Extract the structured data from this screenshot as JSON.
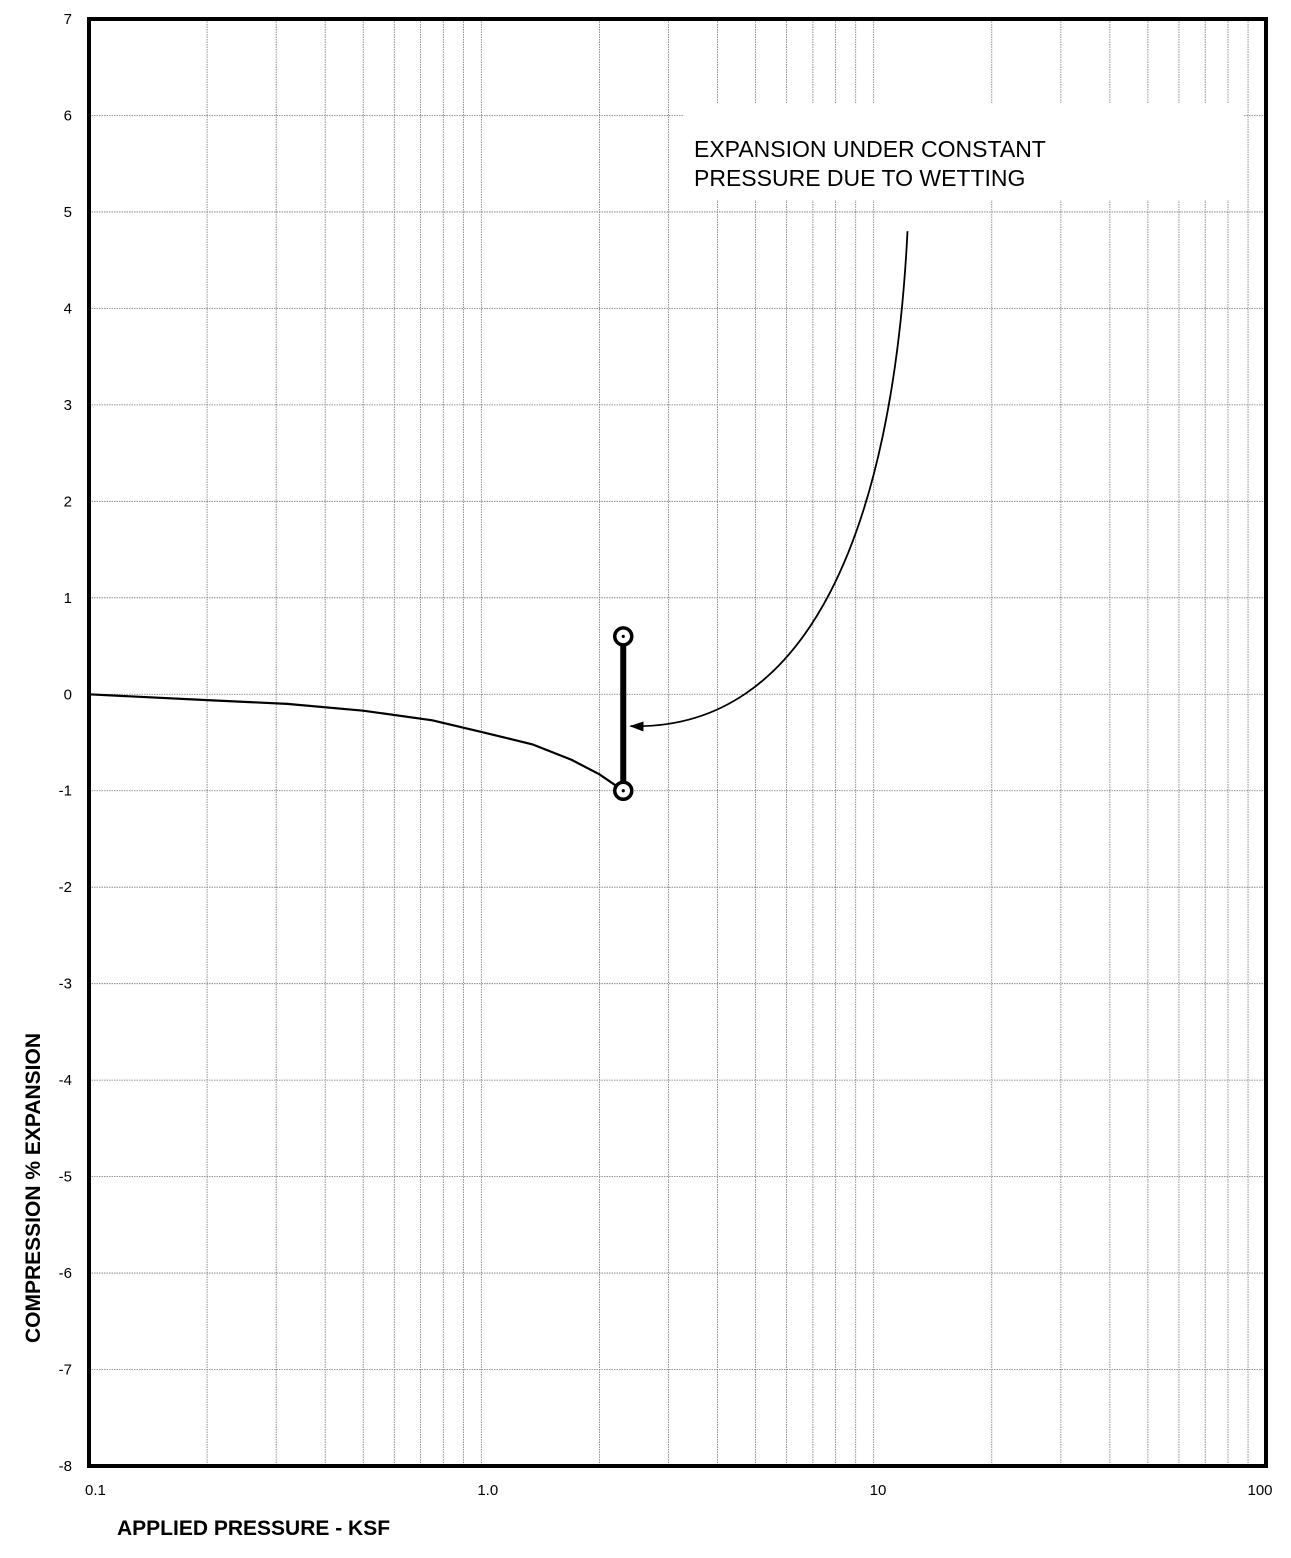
{
  "chart_data": {
    "type": "line",
    "title": "",
    "xlabel": "APPLIED PRESSURE - KSF",
    "ylabel": "COMPRESSION % EXPANSION",
    "x_scale": "log",
    "xlim": [
      0.1,
      100
    ],
    "ylim": [
      -8,
      7
    ],
    "grid": true,
    "x_ticks": [
      0.1,
      1,
      10,
      100
    ],
    "x_tick_labels": [
      "0.1",
      "1.0",
      "10",
      "100"
    ],
    "y_ticks": [
      7,
      6,
      5,
      4,
      3,
      2,
      1,
      0,
      -1,
      -2,
      -3,
      -4,
      -5,
      -6,
      -7,
      -8
    ],
    "y_tick_labels": [
      "7",
      "6",
      "5",
      "4",
      "3",
      "2",
      "1",
      "0",
      "-1",
      "-2",
      "-3",
      "-4",
      "-5",
      "-6",
      "-7",
      "-8"
    ],
    "series": [
      {
        "x": [
          0.1,
          0.2,
          0.32,
          0.5,
          0.75,
          1.0,
          1.35,
          1.7,
          2.0,
          2.3
        ],
        "y": [
          0.0,
          -0.06,
          -0.1,
          -0.17,
          -0.27,
          -0.39,
          -0.52,
          -0.68,
          -0.83,
          -1.0
        ]
      }
    ],
    "wetting_step": {
      "x": 2.3,
      "y_start": -1.0,
      "y_end": 0.6
    },
    "annotations": [
      {
        "lines": [
          "EXPANSION UNDER CONSTANT",
          "PRESSURE DUE TO WETTING"
        ],
        "arrow_from": [
          12.2,
          4.8
        ],
        "arrow_to": [
          2.4,
          -0.33
        ]
      }
    ]
  }
}
